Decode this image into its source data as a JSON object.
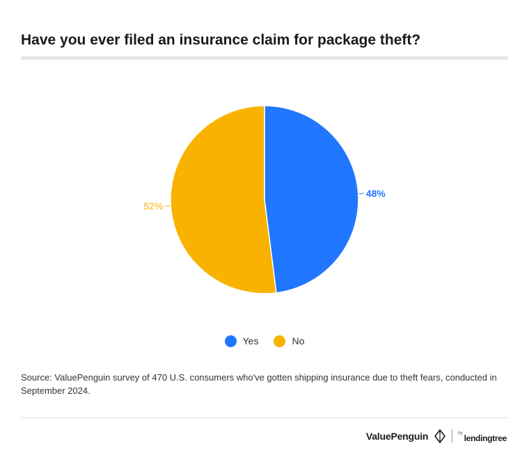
{
  "title": "Have you ever filed an insurance claim for package theft?",
  "chart_data": {
    "type": "pie",
    "slices": [
      {
        "label": "Yes",
        "value": 48,
        "display": "48%",
        "color": "#2176ff"
      },
      {
        "label": "No",
        "value": 52,
        "display": "52%",
        "color": "#f9b200"
      }
    ]
  },
  "legend": [
    {
      "label": "Yes",
      "color": "#2176ff"
    },
    {
      "label": "No",
      "color": "#f9b200"
    }
  ],
  "source": "Source: ValuePenguin survey of 470 U.S. consumers who've gotten shipping insurance due to theft fears, conducted in September 2024.",
  "footer": {
    "brand": "ValuePenguin",
    "by": "by",
    "partner": "lendingtree"
  }
}
